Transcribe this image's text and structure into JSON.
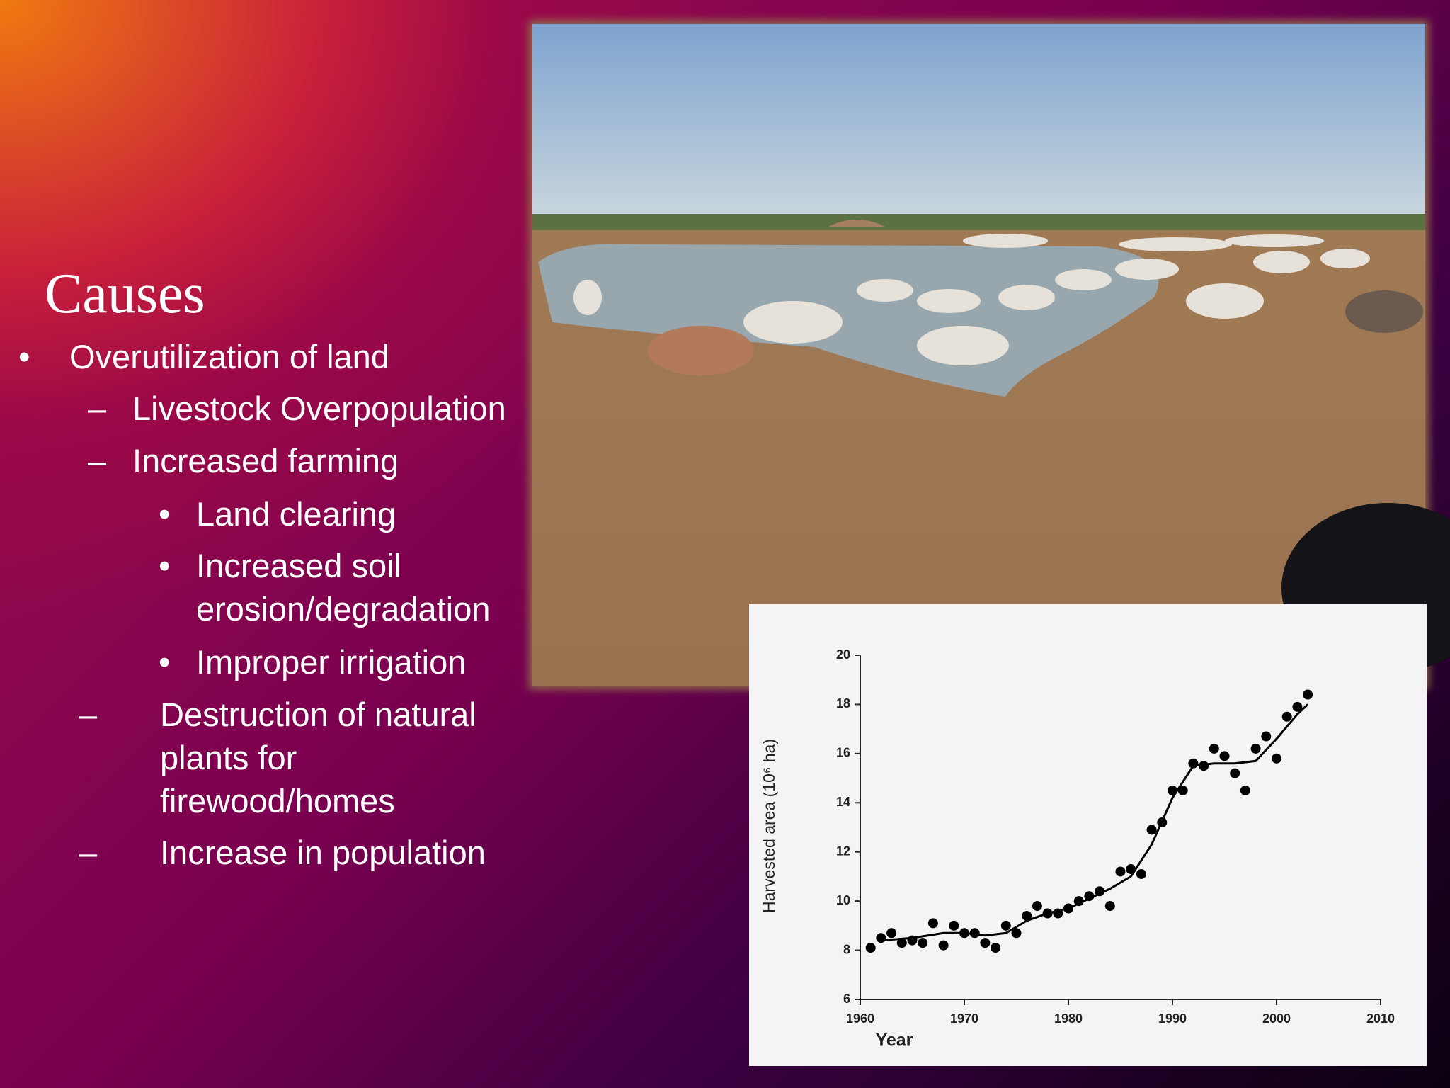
{
  "slide": {
    "title": "Causes",
    "bullets": [
      {
        "marker": "•",
        "text": "Overutilization of land"
      },
      {
        "marker": "–",
        "text": "Livestock Overpopulation"
      },
      {
        "marker": "–",
        "text": "Increased farming"
      },
      {
        "marker": "•",
        "text": "Land clearing"
      },
      {
        "marker": "•",
        "text": "Increased soil erosion/degradation"
      },
      {
        "marker": "•",
        "text": "Improper irrigation"
      },
      {
        "marker": "–",
        "text": "Destruction of natural plants for firewood/homes"
      },
      {
        "marker": "–",
        "text": "Increase in population"
      }
    ]
  },
  "chart_data": {
    "type": "scatter",
    "xlabel": "Year",
    "ylabel": "Harvested area (10⁶ ha)",
    "xlim": [
      1960,
      2010
    ],
    "ylim": [
      6,
      20
    ],
    "xticks": [
      1960,
      1970,
      1980,
      1990,
      2000,
      2010
    ],
    "yticks": [
      6,
      8,
      10,
      12,
      14,
      16,
      18,
      20
    ],
    "series": [
      {
        "type": "scatter",
        "color": "#000000",
        "x": [
          1961,
          1962,
          1963,
          1964,
          1965,
          1966,
          1967,
          1968,
          1969,
          1970,
          1971,
          1972,
          1973,
          1974,
          1975,
          1976,
          1977,
          1978,
          1979,
          1980,
          1981,
          1982,
          1983,
          1984,
          1985,
          1986,
          1987,
          1988,
          1989,
          1990,
          1991,
          1992,
          1993,
          1994,
          1995,
          1996,
          1997,
          1998,
          1999,
          2000,
          2001,
          2002,
          2003
        ],
        "values": [
          8.1,
          8.5,
          8.7,
          8.3,
          8.4,
          8.3,
          9.1,
          8.2,
          9.0,
          8.7,
          8.7,
          8.3,
          8.1,
          9.0,
          8.7,
          9.4,
          9.8,
          9.5,
          9.5,
          9.7,
          10.0,
          10.2,
          10.4,
          9.8,
          11.2,
          11.3,
          11.1,
          12.9,
          13.2,
          14.5,
          14.5,
          15.6,
          15.5,
          16.2,
          15.9,
          15.2,
          14.5,
          16.2,
          16.7,
          15.8,
          17.5,
          17.9,
          18.4
        ]
      },
      {
        "type": "line",
        "color": "#000000",
        "x": [
          1962,
          1965,
          1968,
          1970,
          1972,
          1974,
          1976,
          1978,
          1980,
          1982,
          1984,
          1986,
          1988,
          1990,
          1992,
          1994,
          1996,
          1998,
          2000,
          2002,
          2003
        ],
        "values": [
          8.4,
          8.5,
          8.7,
          8.7,
          8.6,
          8.7,
          9.2,
          9.5,
          9.7,
          10.1,
          10.5,
          11.0,
          12.3,
          14.2,
          15.5,
          15.6,
          15.6,
          15.7,
          16.6,
          17.6,
          18.0
        ]
      }
    ]
  }
}
